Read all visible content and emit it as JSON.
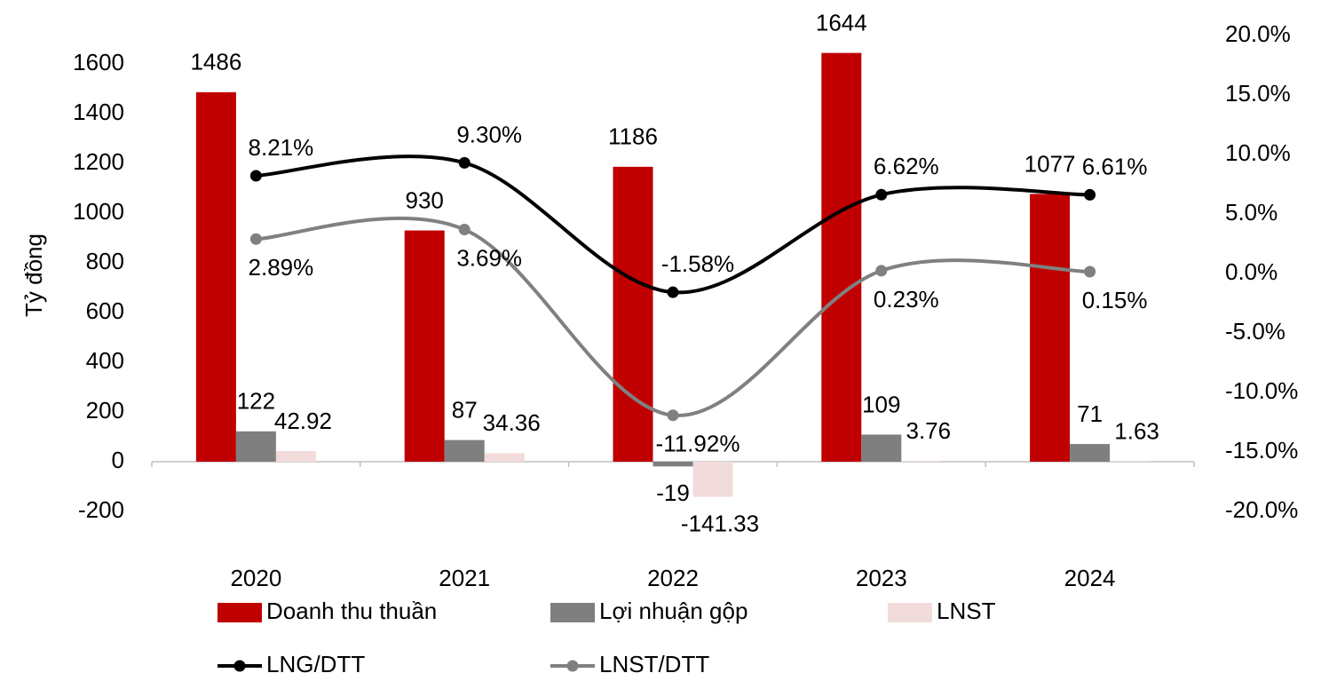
{
  "chart_data": {
    "type": "bar",
    "y_label": "Tỷ đồng",
    "categories": [
      "2020",
      "2021",
      "2022",
      "2023",
      "2024"
    ],
    "series": [
      {
        "name": "Doanh thu thuần",
        "type": "bar",
        "color": "#c00000",
        "values": [
          1486,
          930,
          1186,
          1644,
          1077
        ]
      },
      {
        "name": "Lợi nhuận gộp",
        "type": "bar",
        "color": "#7f7f7f",
        "values": [
          122,
          87,
          -19,
          109,
          71
        ]
      },
      {
        "name": "LNST",
        "type": "bar",
        "color": "#f2dcdb",
        "values": [
          42.92,
          34.36,
          -141.33,
          3.76,
          1.63
        ]
      },
      {
        "name": "LNG/DTT",
        "type": "line",
        "axis": "y2",
        "color": "#000000",
        "values": [
          8.21,
          9.3,
          -1.58,
          6.62,
          6.61
        ],
        "value_labels": [
          "8.21%",
          "9.30%",
          "-1.58%",
          "6.62%",
          "6.61%"
        ]
      },
      {
        "name": "LNST/DTT",
        "type": "line",
        "axis": "y2",
        "color": "#808080",
        "values": [
          2.89,
          3.69,
          -11.92,
          0.23,
          0.15
        ],
        "value_labels": [
          "2.89%",
          "3.69%",
          "-11.92%",
          "0.23%",
          "0.15%"
        ]
      }
    ],
    "ylim": [
      -200,
      1714
    ],
    "yticks": [
      -200,
      0,
      200,
      400,
      600,
      800,
      1000,
      1200,
      1400,
      1600
    ],
    "y2lim": [
      -20,
      20
    ],
    "y2ticks": [
      {
        "value": -20,
        "label": "-20.0%"
      },
      {
        "value": -15,
        "label": "-15.0%"
      },
      {
        "value": -10,
        "label": "-10.0%"
      },
      {
        "value": -5,
        "label": "-5.0%"
      },
      {
        "value": 0,
        "label": "0.0%"
      },
      {
        "value": 5,
        "label": "5.0%"
      },
      {
        "value": 10,
        "label": "10.0%"
      },
      {
        "value": 15,
        "label": "15.0%"
      },
      {
        "value": 20,
        "label": "20.0%"
      }
    ],
    "grid": false,
    "smooth": true,
    "legend": "bottom"
  }
}
